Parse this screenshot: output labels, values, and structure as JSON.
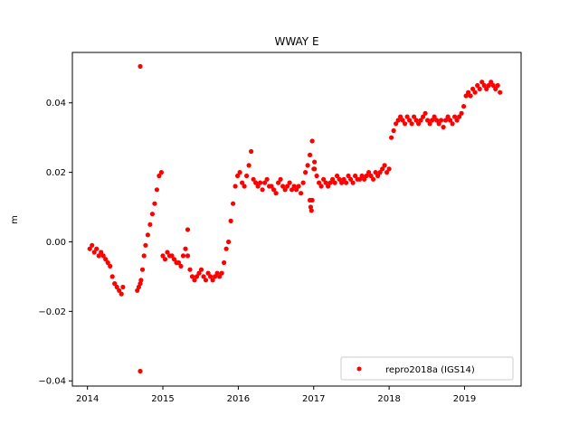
{
  "chart_data": {
    "type": "scatter",
    "title": "WWAY E",
    "xlabel": "",
    "ylabel": "m",
    "xlim": [
      2013.8,
      2019.75
    ],
    "ylim": [
      -0.0415,
      0.0545
    ],
    "xticks": [
      2014,
      2015,
      2016,
      2017,
      2018,
      2019
    ],
    "xtick_labels": [
      "2014",
      "2015",
      "2016",
      "2017",
      "2018",
      "2019"
    ],
    "yticks": [
      -0.04,
      -0.02,
      0.0,
      0.02,
      0.04
    ],
    "ytick_labels": [
      "−0.04",
      "−0.02",
      "0.00",
      "0.02",
      "0.04"
    ],
    "grid": false,
    "legend_position": "lower-right",
    "series": [
      {
        "name": "repro2018a (IGS14)",
        "color": "#ff0000",
        "marker": "circle",
        "x": [
          2014.03,
          2014.06,
          2014.09,
          2014.12,
          2014.15,
          2014.18,
          2014.21,
          2014.24,
          2014.27,
          2014.3,
          2014.33,
          2014.36,
          2014.39,
          2014.42,
          2014.45,
          2014.47,
          2014.66,
          2014.68,
          2014.7,
          2014.71,
          2014.73,
          2014.75,
          2014.77,
          2014.8,
          2014.83,
          2014.86,
          2014.89,
          2014.92,
          2014.95,
          2014.98,
          2015.0,
          2015.03,
          2015.06,
          2015.09,
          2015.12,
          2015.15,
          2015.18,
          2015.21,
          2015.24,
          2015.27,
          2015.3,
          2015.33,
          2015.36,
          2015.39,
          2015.42,
          2015.45,
          2015.48,
          2015.51,
          2015.54,
          2015.57,
          2015.6,
          2015.63,
          2015.66,
          2015.69,
          2015.72,
          2015.75,
          2015.78,
          2015.81,
          2015.84,
          2015.87,
          2015.9,
          2015.93,
          2015.96,
          2015.99,
          2016.02,
          2016.05,
          2016.08,
          2016.11,
          2016.14,
          2016.17,
          2016.2,
          2016.23,
          2016.26,
          2016.29,
          2016.32,
          2016.35,
          2016.38,
          2016.41,
          2016.44,
          2016.47,
          2016.5,
          2016.53,
          2016.56,
          2016.59,
          2016.62,
          2016.65,
          2016.68,
          2016.71,
          2016.74,
          2016.77,
          2016.8,
          2016.83,
          2016.86,
          2016.89,
          2016.92,
          2016.95,
          2016.98,
          2017.01,
          2017.04,
          2017.07,
          2017.1,
          2017.13,
          2017.16,
          2017.19,
          2017.22,
          2017.25,
          2017.28,
          2017.31,
          2017.34,
          2017.37,
          2017.4,
          2017.43,
          2017.46,
          2017.49,
          2017.52,
          2017.55,
          2017.58,
          2017.61,
          2017.64,
          2017.67,
          2017.7,
          2017.73,
          2017.76,
          2017.79,
          2017.82,
          2017.85,
          2017.88,
          2017.91,
          2017.94,
          2017.97,
          2018.0,
          2018.03,
          2018.06,
          2018.09,
          2018.12,
          2018.15,
          2018.18,
          2018.21,
          2018.24,
          2018.27,
          2018.3,
          2018.33,
          2018.36,
          2018.39,
          2018.42,
          2018.45,
          2018.48,
          2018.51,
          2018.54,
          2018.57,
          2018.6,
          2018.63,
          2018.66,
          2018.69,
          2018.72,
          2018.75,
          2018.78,
          2018.81,
          2018.84,
          2018.87,
          2018.9,
          2018.93,
          2018.96,
          2018.99,
          2019.02,
          2019.05,
          2019.08,
          2019.11,
          2019.14,
          2019.17,
          2019.2,
          2019.23,
          2019.26,
          2019.29,
          2019.32,
          2019.35,
          2019.38,
          2019.41,
          2019.44,
          2019.47,
          2014.7,
          2014.7,
          2015.33,
          2016.95,
          2016.96,
          2016.97,
          2016.98,
          2017.0,
          2017.01
        ],
        "y": [
          -0.002,
          -0.001,
          -0.003,
          -0.002,
          -0.004,
          -0.003,
          -0.004,
          -0.005,
          -0.006,
          -0.007,
          -0.01,
          -0.012,
          -0.013,
          -0.014,
          -0.015,
          -0.013,
          -0.014,
          -0.013,
          -0.012,
          -0.011,
          -0.008,
          -0.004,
          -0.001,
          0.002,
          0.005,
          0.008,
          0.011,
          0.015,
          0.019,
          0.02,
          -0.004,
          -0.005,
          -0.003,
          -0.004,
          -0.004,
          -0.005,
          -0.006,
          -0.006,
          -0.007,
          -0.004,
          -0.002,
          -0.004,
          -0.008,
          -0.01,
          -0.011,
          -0.01,
          -0.009,
          -0.008,
          -0.01,
          -0.011,
          -0.009,
          -0.01,
          -0.011,
          -0.01,
          -0.009,
          -0.01,
          -0.009,
          -0.006,
          -0.002,
          0.0,
          0.006,
          0.011,
          0.016,
          0.019,
          0.02,
          0.017,
          0.016,
          0.019,
          0.022,
          0.026,
          0.018,
          0.017,
          0.016,
          0.017,
          0.015,
          0.017,
          0.018,
          0.016,
          0.016,
          0.015,
          0.014,
          0.017,
          0.018,
          0.016,
          0.015,
          0.016,
          0.017,
          0.015,
          0.016,
          0.015,
          0.016,
          0.014,
          0.017,
          0.02,
          0.022,
          0.025,
          0.029,
          0.021,
          0.019,
          0.017,
          0.016,
          0.018,
          0.017,
          0.016,
          0.017,
          0.018,
          0.017,
          0.019,
          0.018,
          0.017,
          0.018,
          0.017,
          0.019,
          0.018,
          0.017,
          0.019,
          0.018,
          0.018,
          0.019,
          0.018,
          0.019,
          0.02,
          0.019,
          0.018,
          0.02,
          0.019,
          0.02,
          0.021,
          0.022,
          0.02,
          0.021,
          0.03,
          0.032,
          0.034,
          0.035,
          0.036,
          0.035,
          0.034,
          0.036,
          0.035,
          0.034,
          0.036,
          0.035,
          0.034,
          0.035,
          0.036,
          0.037,
          0.035,
          0.034,
          0.035,
          0.036,
          0.035,
          0.034,
          0.035,
          0.033,
          0.035,
          0.036,
          0.035,
          0.034,
          0.036,
          0.035,
          0.036,
          0.037,
          0.039,
          0.042,
          0.043,
          0.042,
          0.044,
          0.043,
          0.045,
          0.044,
          0.046,
          0.045,
          0.044,
          0.045,
          0.046,
          0.045,
          0.044,
          0.045,
          0.043,
          0.0505,
          -0.0372,
          0.0035,
          0.012,
          0.01,
          0.009,
          0.012,
          0.021,
          0.023
        ]
      }
    ]
  }
}
